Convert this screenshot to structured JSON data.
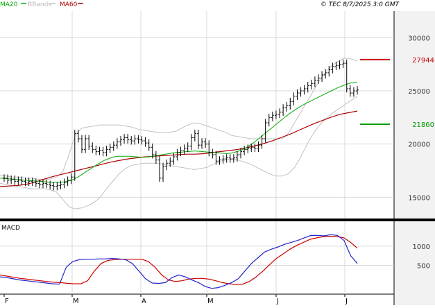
{
  "legend": {
    "ma20_label": "MA20",
    "bbands_label": "BBands",
    "ma60_label": "MA60"
  },
  "timestamp": "© TEC 8/7/2025 3:0 GMT",
  "macd_label": "MACD",
  "colors": {
    "background": "#ffffff",
    "panel_bg": "#f2f2f2",
    "grid": "#d8d8d8",
    "price": "#000000",
    "ma20": "#00aa00",
    "ma60": "#aa0000",
    "bbands": "#c0c0c0",
    "macd": "#2222cc",
    "signal": "#cc0000",
    "resistance": "#cc0000",
    "support": "#009900"
  },
  "chart_data": [
    {
      "type": "line",
      "title": "",
      "xlabel": "",
      "ylabel": "",
      "x_ticks": [
        "F",
        "M",
        "A",
        "M",
        "J",
        "J"
      ],
      "y_ticks": [
        15000,
        20000,
        25000,
        30000
      ],
      "ylim": [
        13000,
        32500
      ],
      "grid": true,
      "price_closes": [
        16800,
        16600,
        16700,
        16500,
        16600,
        16500,
        16400,
        16500,
        16400,
        16300,
        16200,
        16300,
        16200,
        16100,
        16000,
        16100,
        16200,
        16400,
        16600,
        16900,
        21000,
        20500,
        19500,
        20500,
        19800,
        19500,
        19300,
        19400,
        19200,
        19500,
        19700,
        19900,
        20200,
        20400,
        20600,
        20400,
        20300,
        20500,
        20400,
        20300,
        20100,
        19700,
        19000,
        18500,
        16800,
        17900,
        18200,
        18400,
        18800,
        19200,
        19400,
        19600,
        19800,
        20600,
        21000,
        19900,
        20200,
        20000,
        19200,
        19000,
        18400,
        18500,
        18600,
        18700,
        18600,
        18700,
        19000,
        19300,
        19500,
        19600,
        19700,
        19600,
        19900,
        20500,
        22000,
        22500,
        22700,
        22800,
        23000,
        23400,
        23600,
        24000,
        24500,
        24800,
        25000,
        25200,
        25500,
        25700,
        26000,
        26200,
        26500,
        26700,
        27000,
        27300,
        27400,
        27500,
        27600,
        25200,
        24800,
        25000,
        25100
      ],
      "series": [
        {
          "name": "MA20",
          "values": [
            16800,
            16750,
            16700,
            16650,
            16600,
            16550,
            16500,
            16450,
            16400,
            16400,
            16450,
            16600,
            16900,
            17300,
            17700,
            18100,
            18450,
            18700,
            18850,
            18850,
            18850,
            18800,
            18750,
            18800,
            18900,
            19000,
            19100,
            19200,
            19250,
            19300,
            19350,
            19300,
            19250,
            19200,
            19150,
            19100,
            19200,
            19400,
            19700,
            20100,
            20600,
            21100,
            21600,
            22100,
            22600,
            23050,
            23450,
            23800,
            24100,
            24400,
            24700,
            25000,
            25300,
            25550,
            25750,
            25800
          ]
        },
        {
          "name": "MA60",
          "values": [
            16000,
            16050,
            16100,
            16200,
            16400,
            16650,
            16900,
            17100,
            17300,
            17500,
            17700,
            17900,
            18100,
            18300,
            18450,
            18600,
            18700,
            18800,
            18850,
            18900,
            18950,
            19000,
            19050,
            19050,
            19100,
            19200,
            19300,
            19400,
            19500,
            19650,
            19850,
            20050,
            20300,
            20600,
            20900,
            21250,
            21600,
            21950,
            22250,
            22550,
            22800,
            22950,
            23100
          ]
        },
        {
          "name": "BBands upper",
          "values": [
            17100,
            17000,
            16900,
            16900,
            16800,
            16800,
            16700,
            16700,
            16700,
            16900,
            17400,
            19000,
            20800,
            21500,
            21600,
            21700,
            21800,
            21800,
            21800,
            21800,
            21700,
            21600,
            21400,
            21300,
            21200,
            21100,
            21100,
            21100,
            21200,
            21500,
            21800,
            22000,
            21900,
            21700,
            21500,
            21300,
            21100,
            20800,
            20700,
            20600,
            20500,
            20500,
            20500,
            20500,
            20500,
            20500,
            21000,
            22000,
            23000,
            24000,
            25000,
            26000,
            26800,
            27400,
            27800,
            28100,
            28000,
            27800
          ]
        },
        {
          "name": "BBands lower",
          "values": [
            16300,
            16200,
            16100,
            16000,
            15900,
            15800,
            15800,
            15800,
            15700,
            15500,
            14800,
            14100,
            13900,
            14000,
            14200,
            14500,
            15000,
            15800,
            16500,
            17200,
            17700,
            18000,
            18100,
            18200,
            18200,
            18200,
            18100,
            18000,
            17900,
            17800,
            17700,
            17600,
            17700,
            17800,
            18100,
            18300,
            18500,
            18600,
            18500,
            18300,
            18100,
            17800,
            17500,
            17200,
            17000,
            17000,
            17200,
            17800,
            18800,
            20000,
            21000,
            21800,
            22400,
            22900,
            23300,
            23700,
            24100,
            24500
          ]
        },
        {
          "name": "MACD",
          "values": [
            0.2,
            0.18,
            0.15,
            0.12,
            0.1,
            0.08,
            0.06,
            0.04,
            0.02,
            0.01,
            0.45,
            0.6,
            0.65,
            0.66,
            0.66,
            0.67,
            0.67,
            0.68,
            0.67,
            0.65,
            0.55,
            0.35,
            0.15,
            0.04,
            0.03,
            0.05,
            0.18,
            0.25,
            0.2,
            0.12,
            0.05,
            -0.05,
            -0.1,
            -0.08,
            -0.02,
            0.05,
            0.15,
            0.35,
            0.55,
            0.7,
            0.85,
            0.92,
            0.98,
            1.05,
            1.1,
            1.15,
            1.22,
            1.28,
            1.28,
            1.27,
            1.3,
            1.28,
            1.15,
            0.75,
            0.55
          ]
        },
        {
          "name": "Signal",
          "values": [
            0.25,
            0.22,
            0.19,
            0.16,
            0.14,
            0.12,
            0.1,
            0.08,
            0.06,
            0.05,
            0.03,
            0.02,
            0.02,
            0.1,
            0.35,
            0.55,
            0.63,
            0.65,
            0.66,
            0.66,
            0.66,
            0.66,
            0.6,
            0.45,
            0.25,
            0.12,
            0.08,
            0.1,
            0.14,
            0.16,
            0.16,
            0.14,
            0.1,
            0.05,
            0.02,
            0.0,
            0.01,
            0.08,
            0.2,
            0.35,
            0.52,
            0.68,
            0.8,
            0.92,
            1.02,
            1.1,
            1.18,
            1.22,
            1.25,
            1.26,
            1.25,
            1.22,
            1.1,
            0.95
          ]
        }
      ],
      "levels": [
        {
          "label": "27944",
          "value": 27944,
          "color": "#cc0000"
        },
        {
          "label": "21860",
          "value": 21860,
          "color": "#009900"
        }
      ]
    },
    {
      "type": "line",
      "title": "MACD",
      "y_ticks": [
        500,
        1000
      ]
    }
  ]
}
